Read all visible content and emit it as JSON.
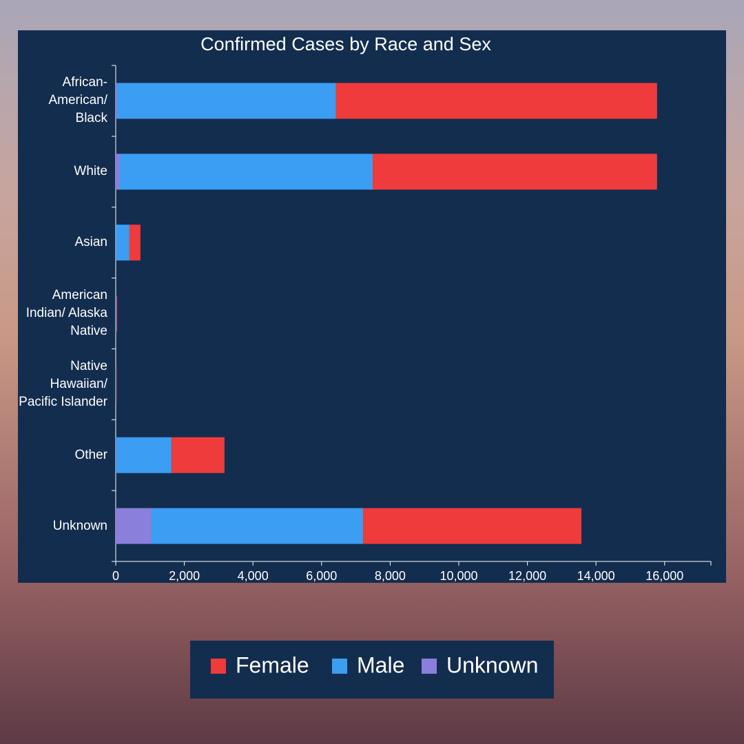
{
  "chart_data": {
    "type": "stacked-barh",
    "title": "Confirmed Cases by Race and Sex",
    "categories": [
      "African-American/ Black",
      "White",
      "Asian",
      "American Indian/ Alaska Native",
      "Native Hawaiian/ Pacific Islander",
      "Other",
      "Unknown"
    ],
    "series": [
      {
        "name": "Female",
        "color": "#ef3b3b",
        "values": [
          9360,
          8290,
          320,
          20,
          15,
          1545,
          6365
        ]
      },
      {
        "name": "Male",
        "color": "#3b9ef2",
        "values": [
          6380,
          7370,
          395,
          20,
          15,
          1615,
          6165
        ]
      },
      {
        "name": "Unknown",
        "color": "#8b7fdc",
        "values": [
          40,
          120,
          5,
          0,
          0,
          10,
          1045
        ]
      }
    ],
    "xlim": [
      0,
      17350
    ],
    "xticks": [
      0,
      {
        "value": 2000,
        "label": "2,000"
      },
      {
        "value": 4000,
        "label": "4,000"
      },
      {
        "value": 6000,
        "label": "6,000"
      },
      {
        "value": 8000,
        "label": "8,000"
      },
      {
        "value": 10000,
        "label": "10,000"
      },
      {
        "value": 12000,
        "label": "12,000"
      },
      {
        "value": 14000,
        "label": "14,000"
      },
      {
        "value": 16000,
        "label": "16,000"
      }
    ],
    "grid": false,
    "legend": "bottom"
  }
}
